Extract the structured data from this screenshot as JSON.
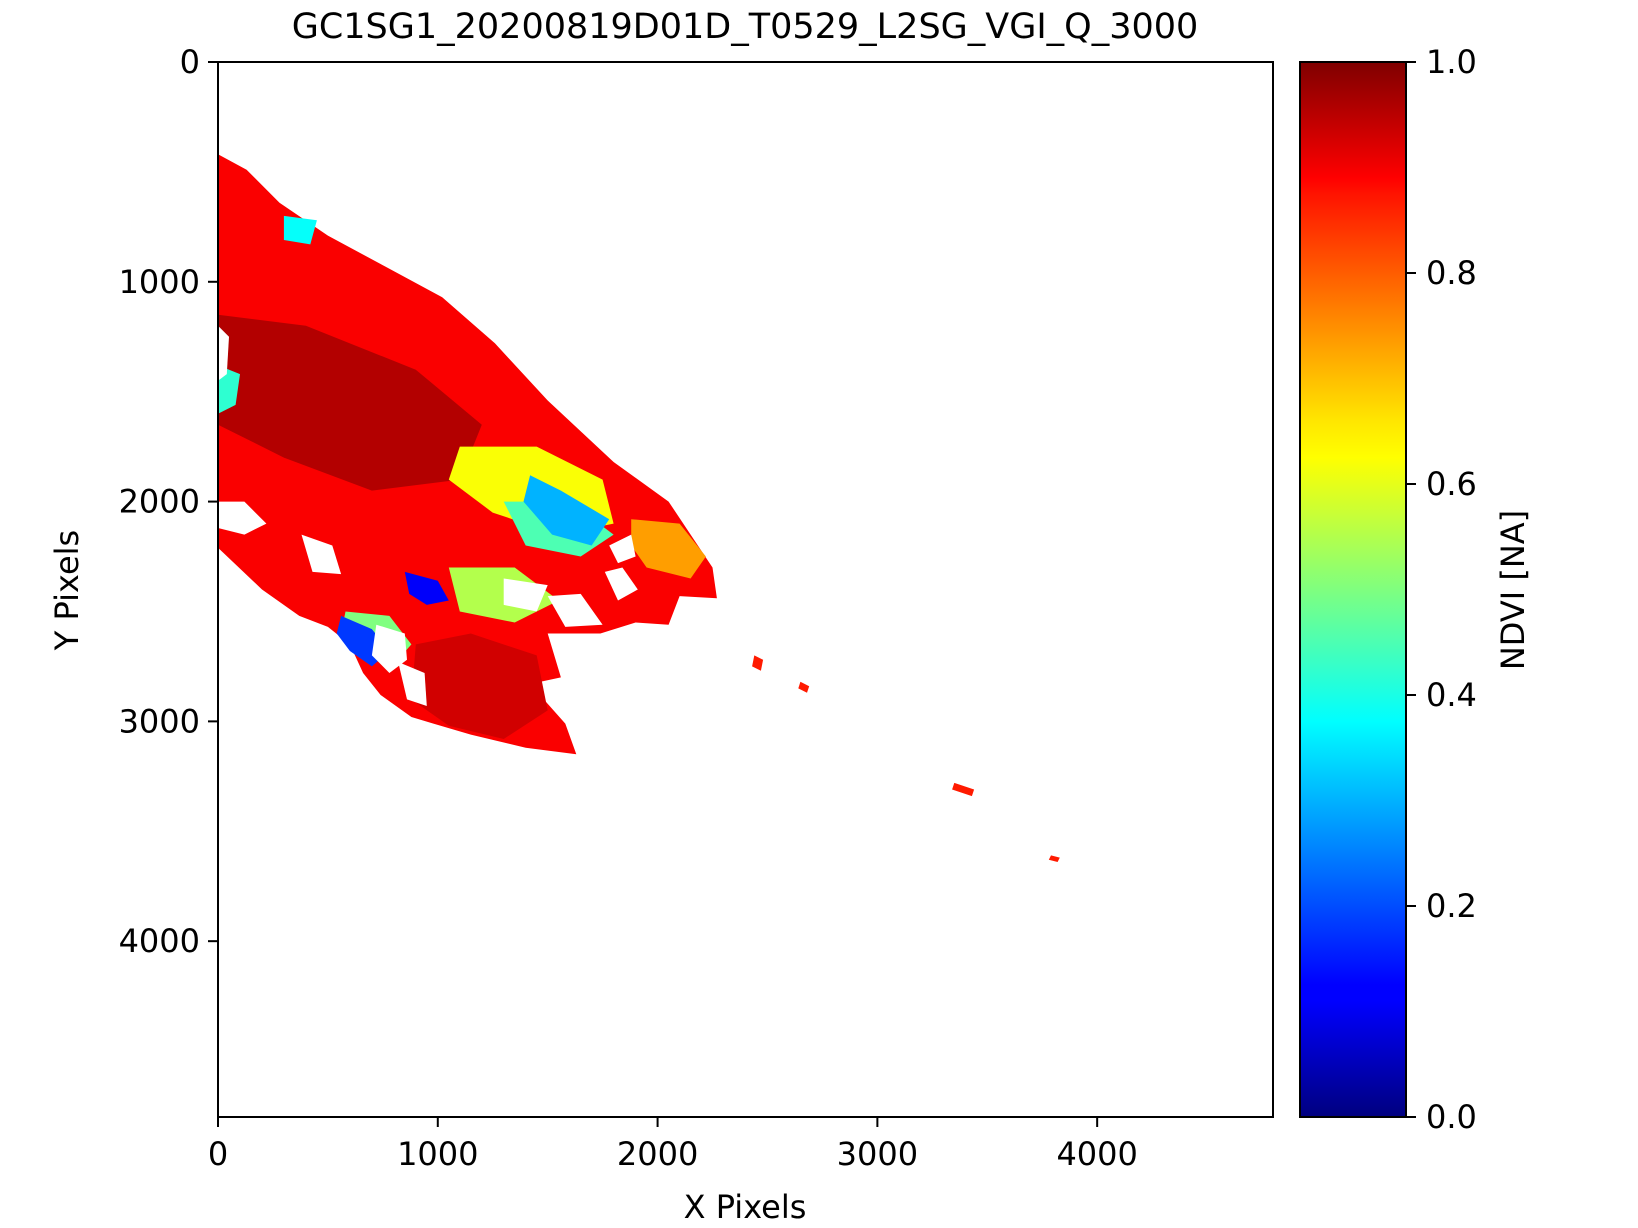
{
  "chart_data": {
    "type": "heatmap",
    "title": "GC1SG1_20200819D01D_T0529_L2SG_VGI_Q_3000",
    "xlabel": "X Pixels",
    "ylabel": "Y Pixels",
    "xlim": [
      0,
      4800
    ],
    "ylim": [
      4800,
      0
    ],
    "y_inverted": true,
    "grid": false,
    "xticks": [
      {
        "value": 0,
        "label": "0"
      },
      {
        "value": 1000,
        "label": "1000"
      },
      {
        "value": 2000,
        "label": "2000"
      },
      {
        "value": 3000,
        "label": "3000"
      },
      {
        "value": 4000,
        "label": "4000"
      }
    ],
    "yticks": [
      {
        "value": 0,
        "label": "0"
      },
      {
        "value": 1000,
        "label": "1000"
      },
      {
        "value": 2000,
        "label": "2000"
      },
      {
        "value": 3000,
        "label": "3000"
      },
      {
        "value": 4000,
        "label": "4000"
      }
    ],
    "colorbar": {
      "label": "NDVI [NA]",
      "colormap": "jet",
      "range": [
        0,
        1
      ],
      "ticks": [
        {
          "value": 0.0,
          "label": "0.0"
        },
        {
          "value": 0.2,
          "label": "0.2"
        },
        {
          "value": 0.4,
          "label": "0.4"
        },
        {
          "value": 0.6,
          "label": "0.6"
        },
        {
          "value": 0.8,
          "label": "0.8"
        },
        {
          "value": 1.0,
          "label": "1.0"
        }
      ]
    },
    "regions": [
      {
        "value": 0.88,
        "polygon": [
          [
            0,
            420
          ],
          [
            130,
            490
          ],
          [
            280,
            640
          ],
          [
            500,
            790
          ],
          [
            760,
            930
          ],
          [
            1020,
            1070
          ],
          [
            1260,
            1280
          ],
          [
            1500,
            1540
          ],
          [
            1800,
            1820
          ],
          [
            2050,
            2000
          ],
          [
            2250,
            2300
          ],
          [
            2270,
            2440
          ],
          [
            2100,
            2430
          ],
          [
            2050,
            2560
          ],
          [
            1900,
            2550
          ],
          [
            1740,
            2600
          ],
          [
            1500,
            2600
          ],
          [
            1560,
            2800
          ],
          [
            1420,
            2830
          ],
          [
            1580,
            3010
          ],
          [
            1630,
            3150
          ],
          [
            1400,
            3120
          ],
          [
            1150,
            3060
          ],
          [
            980,
            3010
          ],
          [
            880,
            2980
          ],
          [
            740,
            2880
          ],
          [
            660,
            2780
          ],
          [
            600,
            2650
          ],
          [
            500,
            2570
          ],
          [
            370,
            2520
          ],
          [
            200,
            2400
          ],
          [
            0,
            2210
          ]
        ]
      },
      {
        "value": 0.95,
        "polygon": [
          [
            0,
            1150
          ],
          [
            400,
            1200
          ],
          [
            900,
            1400
          ],
          [
            1200,
            1650
          ],
          [
            1100,
            1900
          ],
          [
            700,
            1950
          ],
          [
            300,
            1800
          ],
          [
            0,
            1650
          ]
        ]
      },
      {
        "value": 0.92,
        "polygon": [
          [
            900,
            2650
          ],
          [
            1150,
            2600
          ],
          [
            1450,
            2700
          ],
          [
            1500,
            2950
          ],
          [
            1300,
            3080
          ],
          [
            1050,
            3020
          ],
          [
            880,
            2900
          ]
        ]
      },
      {
        "value": 0.62,
        "polygon": [
          [
            1100,
            1750
          ],
          [
            1450,
            1750
          ],
          [
            1750,
            1900
          ],
          [
            1800,
            2100
          ],
          [
            1550,
            2150
          ],
          [
            1250,
            2050
          ],
          [
            1050,
            1900
          ]
        ]
      },
      {
        "value": 0.45,
        "polygon": [
          [
            1300,
            2000
          ],
          [
            1600,
            2000
          ],
          [
            1800,
            2150
          ],
          [
            1650,
            2250
          ],
          [
            1400,
            2200
          ]
        ]
      },
      {
        "value": 0.72,
        "polygon": [
          [
            1880,
            2080
          ],
          [
            2100,
            2100
          ],
          [
            2220,
            2250
          ],
          [
            2150,
            2350
          ],
          [
            1950,
            2300
          ],
          [
            1880,
            2200
          ]
        ]
      },
      {
        "value": 0.3,
        "polygon": [
          [
            1420,
            1880
          ],
          [
            1560,
            1950
          ],
          [
            1780,
            2080
          ],
          [
            1700,
            2200
          ],
          [
            1520,
            2150
          ],
          [
            1390,
            2000
          ]
        ]
      },
      {
        "value": 0.5,
        "polygon": [
          [
            580,
            2500
          ],
          [
            780,
            2520
          ],
          [
            880,
            2650
          ],
          [
            800,
            2740
          ],
          [
            640,
            2700
          ],
          [
            560,
            2600
          ]
        ]
      },
      {
        "value": 0.18,
        "polygon": [
          [
            560,
            2520
          ],
          [
            700,
            2580
          ],
          [
            780,
            2680
          ],
          [
            700,
            2750
          ],
          [
            600,
            2680
          ],
          [
            540,
            2600
          ]
        ]
      },
      {
        "value": 0.55,
        "polygon": [
          [
            1050,
            2300
          ],
          [
            1350,
            2300
          ],
          [
            1550,
            2450
          ],
          [
            1350,
            2550
          ],
          [
            1100,
            2500
          ]
        ]
      },
      {
        "value": 0.12,
        "polygon": [
          [
            850,
            2320
          ],
          [
            1000,
            2360
          ],
          [
            1050,
            2450
          ],
          [
            950,
            2470
          ],
          [
            870,
            2420
          ]
        ]
      },
      {
        "value": 0.38,
        "polygon": [
          [
            300,
            700
          ],
          [
            450,
            720
          ],
          [
            420,
            830
          ],
          [
            300,
            810
          ]
        ]
      },
      {
        "value": 0.42,
        "polygon": [
          [
            0,
            1380
          ],
          [
            100,
            1420
          ],
          [
            80,
            1560
          ],
          [
            0,
            1600
          ]
        ]
      },
      {
        "value": 0.85,
        "polygon": [
          [
            2440,
            2700
          ],
          [
            2480,
            2720
          ],
          [
            2470,
            2770
          ],
          [
            2430,
            2750
          ]
        ]
      },
      {
        "value": 0.85,
        "polygon": [
          [
            2650,
            2820
          ],
          [
            2690,
            2840
          ],
          [
            2680,
            2870
          ],
          [
            2640,
            2850
          ]
        ]
      },
      {
        "value": 0.85,
        "polygon": [
          [
            3350,
            3280
          ],
          [
            3440,
            3310
          ],
          [
            3430,
            3340
          ],
          [
            3340,
            3310
          ]
        ]
      },
      {
        "value": 0.85,
        "polygon": [
          [
            3790,
            3610
          ],
          [
            3830,
            3620
          ],
          [
            3820,
            3640
          ],
          [
            3780,
            3630
          ]
        ]
      }
    ],
    "gaps": [
      {
        "polygon": [
          [
            0,
            1200
          ],
          [
            50,
            1250
          ],
          [
            40,
            1420
          ],
          [
            0,
            1450
          ]
        ]
      },
      {
        "polygon": [
          [
            0,
            2000
          ],
          [
            120,
            2000
          ],
          [
            220,
            2100
          ],
          [
            120,
            2150
          ],
          [
            0,
            2120
          ]
        ]
      },
      {
        "polygon": [
          [
            720,
            2560
          ],
          [
            850,
            2600
          ],
          [
            860,
            2720
          ],
          [
            780,
            2780
          ],
          [
            700,
            2700
          ]
        ]
      },
      {
        "polygon": [
          [
            820,
            2730
          ],
          [
            940,
            2780
          ],
          [
            950,
            2930
          ],
          [
            860,
            2900
          ]
        ]
      },
      {
        "polygon": [
          [
            1760,
            2320
          ],
          [
            1840,
            2300
          ],
          [
            1910,
            2400
          ],
          [
            1820,
            2450
          ]
        ]
      },
      {
        "polygon": [
          [
            1500,
            2430
          ],
          [
            1650,
            2420
          ],
          [
            1750,
            2560
          ],
          [
            1580,
            2570
          ]
        ]
      },
      {
        "polygon": [
          [
            1780,
            2200
          ],
          [
            1880,
            2150
          ],
          [
            1900,
            2250
          ],
          [
            1820,
            2280
          ]
        ]
      },
      {
        "polygon": [
          [
            380,
            2150
          ],
          [
            520,
            2200
          ],
          [
            560,
            2330
          ],
          [
            430,
            2320
          ]
        ]
      },
      {
        "polygon": [
          [
            1300,
            2350
          ],
          [
            1500,
            2380
          ],
          [
            1450,
            2500
          ],
          [
            1300,
            2470
          ]
        ]
      }
    ]
  }
}
